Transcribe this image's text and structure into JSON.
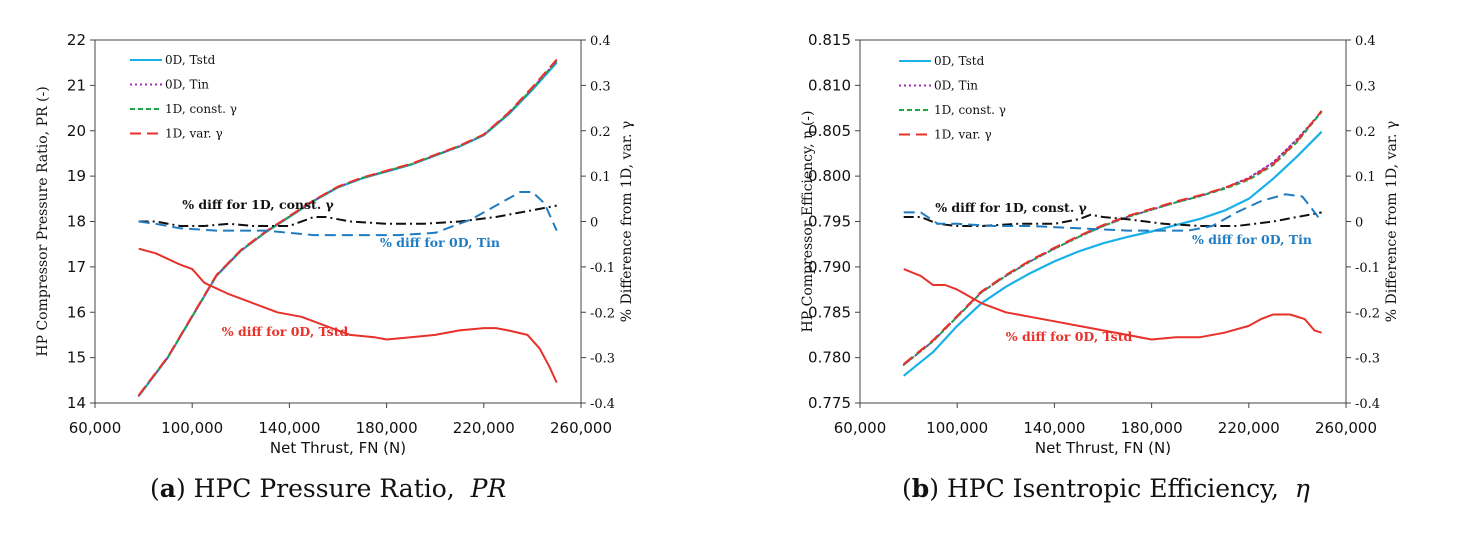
{
  "chart_data": [
    {
      "type": "line",
      "panel_label": "a",
      "caption_text": "HPC Pressure Ratio,",
      "caption_symbol": "PR",
      "xlabel": "Net Thrust, FN (N)",
      "ylabel": "HP Compressor Pressure Ratio, PR (-)",
      "y2label": "% Difference from 1D, var. γ",
      "xlim": [
        60000,
        260000
      ],
      "ylim": [
        14,
        22
      ],
      "y2lim": [
        -0.4,
        0.4
      ],
      "xticks": [
        60000,
        100000,
        140000,
        180000,
        220000,
        260000
      ],
      "xtick_labels": [
        "60,000",
        "100,000",
        "140,000",
        "180,000",
        "220,000",
        "260,000"
      ],
      "yticks": [
        14,
        15,
        16,
        17,
        18,
        19,
        20,
        21,
        22
      ],
      "ytick_labels": [
        "14",
        "15",
        "16",
        "17",
        "18",
        "19",
        "20",
        "21",
        "22"
      ],
      "y2ticks": [
        -0.4,
        -0.3,
        -0.2,
        -0.1,
        0,
        0.1,
        0.2,
        0.3,
        0.4
      ],
      "y2tick_labels": [
        "-0.4",
        "-0.3",
        "-0.2",
        "-0.1",
        "0",
        "0.1",
        "0.2",
        "0.3",
        "0.4"
      ],
      "legend": [
        {
          "label": "0D, Tstd",
          "color": "#1ab0e8",
          "dash": "solid"
        },
        {
          "label": "0D, Tin",
          "color": "#9b2fae",
          "dash": "dot"
        },
        {
          "label": "1D, const. γ",
          "color": "#1aa84a",
          "dash": "short"
        },
        {
          "label": "1D, var. γ",
          "color": "#e8312a",
          "dash": "long"
        }
      ],
      "series": [
        {
          "name": "0D, Tstd",
          "axis": "left",
          "color": "#1ab0e8",
          "dash": "solid",
          "width": 2,
          "x": [
            78000,
            90000,
            100000,
            110000,
            120000,
            130000,
            140000,
            150000,
            160000,
            170000,
            180000,
            190000,
            200000,
            210000,
            220000,
            230000,
            240000,
            250000
          ],
          "y": [
            14.15,
            15.0,
            15.9,
            16.8,
            17.35,
            17.75,
            18.1,
            18.45,
            18.75,
            18.95,
            19.1,
            19.25,
            19.45,
            19.65,
            19.9,
            20.35,
            20.9,
            21.5
          ]
        },
        {
          "name": "0D, Tin",
          "axis": "left",
          "color": "#9b2fae",
          "dash": "dot",
          "width": 2,
          "x": [
            78000,
            90000,
            100000,
            110000,
            120000,
            130000,
            140000,
            150000,
            160000,
            170000,
            180000,
            190000,
            200000,
            210000,
            220000,
            230000,
            240000,
            250000
          ],
          "y": [
            14.16,
            15.01,
            15.91,
            16.81,
            17.36,
            17.76,
            18.11,
            18.46,
            18.76,
            18.96,
            19.11,
            19.26,
            19.46,
            19.66,
            19.91,
            20.37,
            20.93,
            21.54
          ]
        },
        {
          "name": "1D, const. γ",
          "axis": "left",
          "color": "#1aa84a",
          "dash": "short",
          "width": 2,
          "x": [
            78000,
            90000,
            100000,
            110000,
            120000,
            130000,
            140000,
            150000,
            160000,
            170000,
            180000,
            190000,
            200000,
            210000,
            220000,
            230000,
            240000,
            250000
          ],
          "y": [
            14.16,
            15.01,
            15.91,
            16.81,
            17.36,
            17.76,
            18.11,
            18.46,
            18.76,
            18.96,
            19.11,
            19.26,
            19.46,
            19.66,
            19.91,
            20.37,
            20.93,
            21.54
          ]
        },
        {
          "name": "1D, var. γ",
          "axis": "left",
          "color": "#e8312a",
          "dash": "long",
          "width": 2,
          "x": [
            78000,
            90000,
            100000,
            110000,
            120000,
            130000,
            140000,
            150000,
            160000,
            170000,
            180000,
            190000,
            200000,
            210000,
            220000,
            230000,
            240000,
            250000
          ],
          "y": [
            14.17,
            15.02,
            15.92,
            16.82,
            17.37,
            17.77,
            18.12,
            18.47,
            18.77,
            18.97,
            19.12,
            19.27,
            19.47,
            19.67,
            19.92,
            20.39,
            20.96,
            21.57
          ]
        },
        {
          "name": "% diff for 1D, const. γ",
          "axis": "right",
          "color": "#111111",
          "dash": "dashdot",
          "width": 2,
          "x": [
            78000,
            85000,
            95000,
            105000,
            115000,
            125000,
            140000,
            150000,
            155000,
            165000,
            180000,
            195000,
            210000,
            225000,
            240000,
            250000
          ],
          "y": [
            0.0,
            0.0,
            -0.01,
            -0.01,
            -0.005,
            -0.01,
            -0.01,
            0.01,
            0.01,
            0.0,
            -0.005,
            -0.005,
            0.0,
            0.01,
            0.025,
            0.035
          ]
        },
        {
          "name": "% diff for 0D, Tin",
          "axis": "right",
          "color": "#1f7cc1",
          "dash": "long",
          "width": 2,
          "x": [
            78000,
            85000,
            95000,
            110000,
            130000,
            150000,
            170000,
            185000,
            200000,
            215000,
            225000,
            235000,
            240000,
            245000,
            250000
          ],
          "y": [
            0.0,
            -0.005,
            -0.015,
            -0.02,
            -0.02,
            -0.03,
            -0.03,
            -0.03,
            -0.025,
            0.005,
            0.035,
            0.065,
            0.065,
            0.04,
            -0.02
          ]
        },
        {
          "name": "% diff for 0D, Tstd",
          "axis": "right",
          "color": "#e8312a",
          "dash": "solid",
          "width": 2,
          "x": [
            78000,
            85000,
            95000,
            100000,
            105000,
            115000,
            125000,
            135000,
            145000,
            155000,
            165000,
            175000,
            180000,
            190000,
            200000,
            210000,
            220000,
            225000,
            230000,
            238000,
            243000,
            247000,
            250000
          ],
          "y": [
            -0.06,
            -0.07,
            -0.095,
            -0.105,
            -0.135,
            -0.16,
            -0.18,
            -0.2,
            -0.21,
            -0.23,
            -0.25,
            -0.255,
            -0.26,
            -0.255,
            -0.25,
            -0.24,
            -0.235,
            -0.235,
            -0.24,
            -0.25,
            -0.28,
            -0.32,
            -0.355
          ]
        }
      ],
      "annotations": [
        {
          "text": "% diff for 1D, const. γ",
          "color": "#111111"
        },
        {
          "text": "% diff for 0D, Tin",
          "color": "#1f7cc1"
        },
        {
          "text": "% diff for 0D, Tstd",
          "color": "#e8312a"
        }
      ]
    },
    {
      "type": "line",
      "panel_label": "b",
      "caption_text": "HPC Isentropic Efficiency,",
      "caption_symbol": "η",
      "xlabel": "Net Thrust, FN (N)",
      "ylabel": "HP Compressor Efficiency, η (-)",
      "y2label": "% Difference from 1D, var. γ",
      "xlim": [
        60000,
        260000
      ],
      "ylim": [
        0.775,
        0.815
      ],
      "y2lim": [
        -0.4,
        0.4
      ],
      "xticks": [
        60000,
        100000,
        140000,
        180000,
        220000,
        260000
      ],
      "xtick_labels": [
        "60,000",
        "100,000",
        "140,000",
        "180,000",
        "220,000",
        "260,000"
      ],
      "yticks": [
        0.775,
        0.78,
        0.785,
        0.79,
        0.795,
        0.8,
        0.805,
        0.81,
        0.815
      ],
      "ytick_labels": [
        "0.775",
        "0.780",
        "0.785",
        "0.790",
        "0.795",
        "0.800",
        "0.805",
        "0.810",
        "0.815"
      ],
      "y2ticks": [
        -0.4,
        -0.3,
        -0.2,
        -0.1,
        0,
        0.1,
        0.2,
        0.3,
        0.4
      ],
      "y2tick_labels": [
        "-0.4",
        "-0.3",
        "-0.2",
        "-0.1",
        "0",
        "0.1",
        "0.2",
        "0.3",
        "0.4"
      ],
      "legend": [
        {
          "label": "0D, Tstd",
          "color": "#1ab0e8",
          "dash": "solid"
        },
        {
          "label": "0D, Tin",
          "color": "#9b2fae",
          "dash": "dot"
        },
        {
          "label": "1D, const. γ",
          "color": "#1aa84a",
          "dash": "short"
        },
        {
          "label": "1D, var. γ",
          "color": "#e8312a",
          "dash": "long"
        }
      ],
      "series": [
        {
          "name": "0D, Tstd",
          "axis": "left",
          "color": "#1ab0e8",
          "dash": "solid",
          "width": 2.2,
          "x": [
            78000,
            90000,
            100000,
            110000,
            120000,
            130000,
            140000,
            150000,
            160000,
            170000,
            180000,
            190000,
            200000,
            210000,
            220000,
            230000,
            240000,
            250000
          ],
          "y": [
            0.778,
            0.7806,
            0.7835,
            0.786,
            0.7878,
            0.7893,
            0.7906,
            0.7917,
            0.7926,
            0.7933,
            0.7939,
            0.7946,
            0.7953,
            0.7962,
            0.7975,
            0.7997,
            0.8022,
            0.8049
          ]
        },
        {
          "name": "0D, Tin",
          "axis": "left",
          "color": "#9b2fae",
          "dash": "dot",
          "width": 2,
          "x": [
            78000,
            90000,
            100000,
            110000,
            120000,
            130000,
            140000,
            150000,
            160000,
            170000,
            180000,
            190000,
            200000,
            210000,
            220000,
            230000,
            240000,
            250000
          ],
          "y": [
            0.7792,
            0.7818,
            0.7845,
            0.7872,
            0.789,
            0.7906,
            0.792,
            0.7933,
            0.7945,
            0.7955,
            0.7963,
            0.7971,
            0.7978,
            0.7987,
            0.7998,
            0.8015,
            0.8041,
            0.8071
          ]
        },
        {
          "name": "1D, const. γ",
          "axis": "left",
          "color": "#1aa84a",
          "dash": "short",
          "width": 2,
          "x": [
            78000,
            90000,
            100000,
            110000,
            120000,
            130000,
            140000,
            150000,
            160000,
            170000,
            180000,
            190000,
            200000,
            210000,
            220000,
            230000,
            240000,
            250000
          ],
          "y": [
            0.7792,
            0.7818,
            0.7845,
            0.7872,
            0.789,
            0.7906,
            0.792,
            0.7933,
            0.7945,
            0.7955,
            0.7963,
            0.7971,
            0.7978,
            0.7986,
            0.7996,
            0.8012,
            0.8038,
            0.8071
          ]
        },
        {
          "name": "1D, var. γ",
          "axis": "left",
          "color": "#e8312a",
          "dash": "long",
          "width": 2,
          "x": [
            78000,
            90000,
            100000,
            110000,
            120000,
            130000,
            140000,
            150000,
            160000,
            170000,
            180000,
            190000,
            200000,
            210000,
            220000,
            230000,
            240000,
            250000
          ],
          "y": [
            0.7793,
            0.7819,
            0.7846,
            0.7873,
            0.7891,
            0.7907,
            0.7921,
            0.7934,
            0.7946,
            0.7956,
            0.7964,
            0.7972,
            0.7979,
            0.7987,
            0.7997,
            0.8013,
            0.8039,
            0.8072
          ]
        },
        {
          "name": "% diff for 1D, const. γ",
          "axis": "right",
          "color": "#111111",
          "dash": "dashdot",
          "width": 2,
          "x": [
            78000,
            85000,
            92000,
            100000,
            110000,
            125000,
            140000,
            150000,
            155000,
            160000,
            170000,
            185000,
            200000,
            215000,
            230000,
            245000,
            250000
          ],
          "y": [
            0.01,
            0.01,
            -0.005,
            -0.01,
            -0.01,
            -0.005,
            -0.005,
            0.005,
            0.015,
            0.01,
            0.005,
            -0.005,
            -0.01,
            -0.01,
            0.0,
            0.015,
            0.02
          ]
        },
        {
          "name": "% diff for 0D, Tin",
          "axis": "right",
          "color": "#1f7cc1",
          "dash": "long",
          "width": 2,
          "x": [
            78000,
            85000,
            92000,
            100000,
            115000,
            130000,
            150000,
            170000,
            185000,
            195000,
            205000,
            215000,
            225000,
            235000,
            242000,
            250000
          ],
          "y": [
            0.02,
            0.02,
            -0.005,
            -0.005,
            -0.01,
            -0.01,
            -0.015,
            -0.02,
            -0.02,
            -0.02,
            -0.01,
            0.02,
            0.045,
            0.06,
            0.055,
            0.0
          ]
        },
        {
          "name": "% diff for 0D, Tstd",
          "axis": "right",
          "color": "#e8312a",
          "dash": "solid",
          "width": 2,
          "x": [
            78000,
            85000,
            90000,
            95000,
            100000,
            110000,
            120000,
            130000,
            140000,
            150000,
            160000,
            170000,
            180000,
            190000,
            200000,
            210000,
            220000,
            225000,
            230000,
            237000,
            243000,
            247000,
            250000
          ],
          "y": [
            -0.105,
            -0.12,
            -0.14,
            -0.14,
            -0.15,
            -0.18,
            -0.2,
            -0.21,
            -0.22,
            -0.23,
            -0.24,
            -0.25,
            -0.26,
            -0.255,
            -0.255,
            -0.245,
            -0.23,
            -0.215,
            -0.205,
            -0.205,
            -0.215,
            -0.24,
            -0.245
          ]
        }
      ],
      "annotations": [
        {
          "text": "% diff for 1D, const. γ",
          "color": "#111111"
        },
        {
          "text": "% diff for 0D, Tin",
          "color": "#1f7cc1"
        },
        {
          "text": "% diff for 0D, Tstd",
          "color": "#e8312a"
        }
      ]
    }
  ]
}
